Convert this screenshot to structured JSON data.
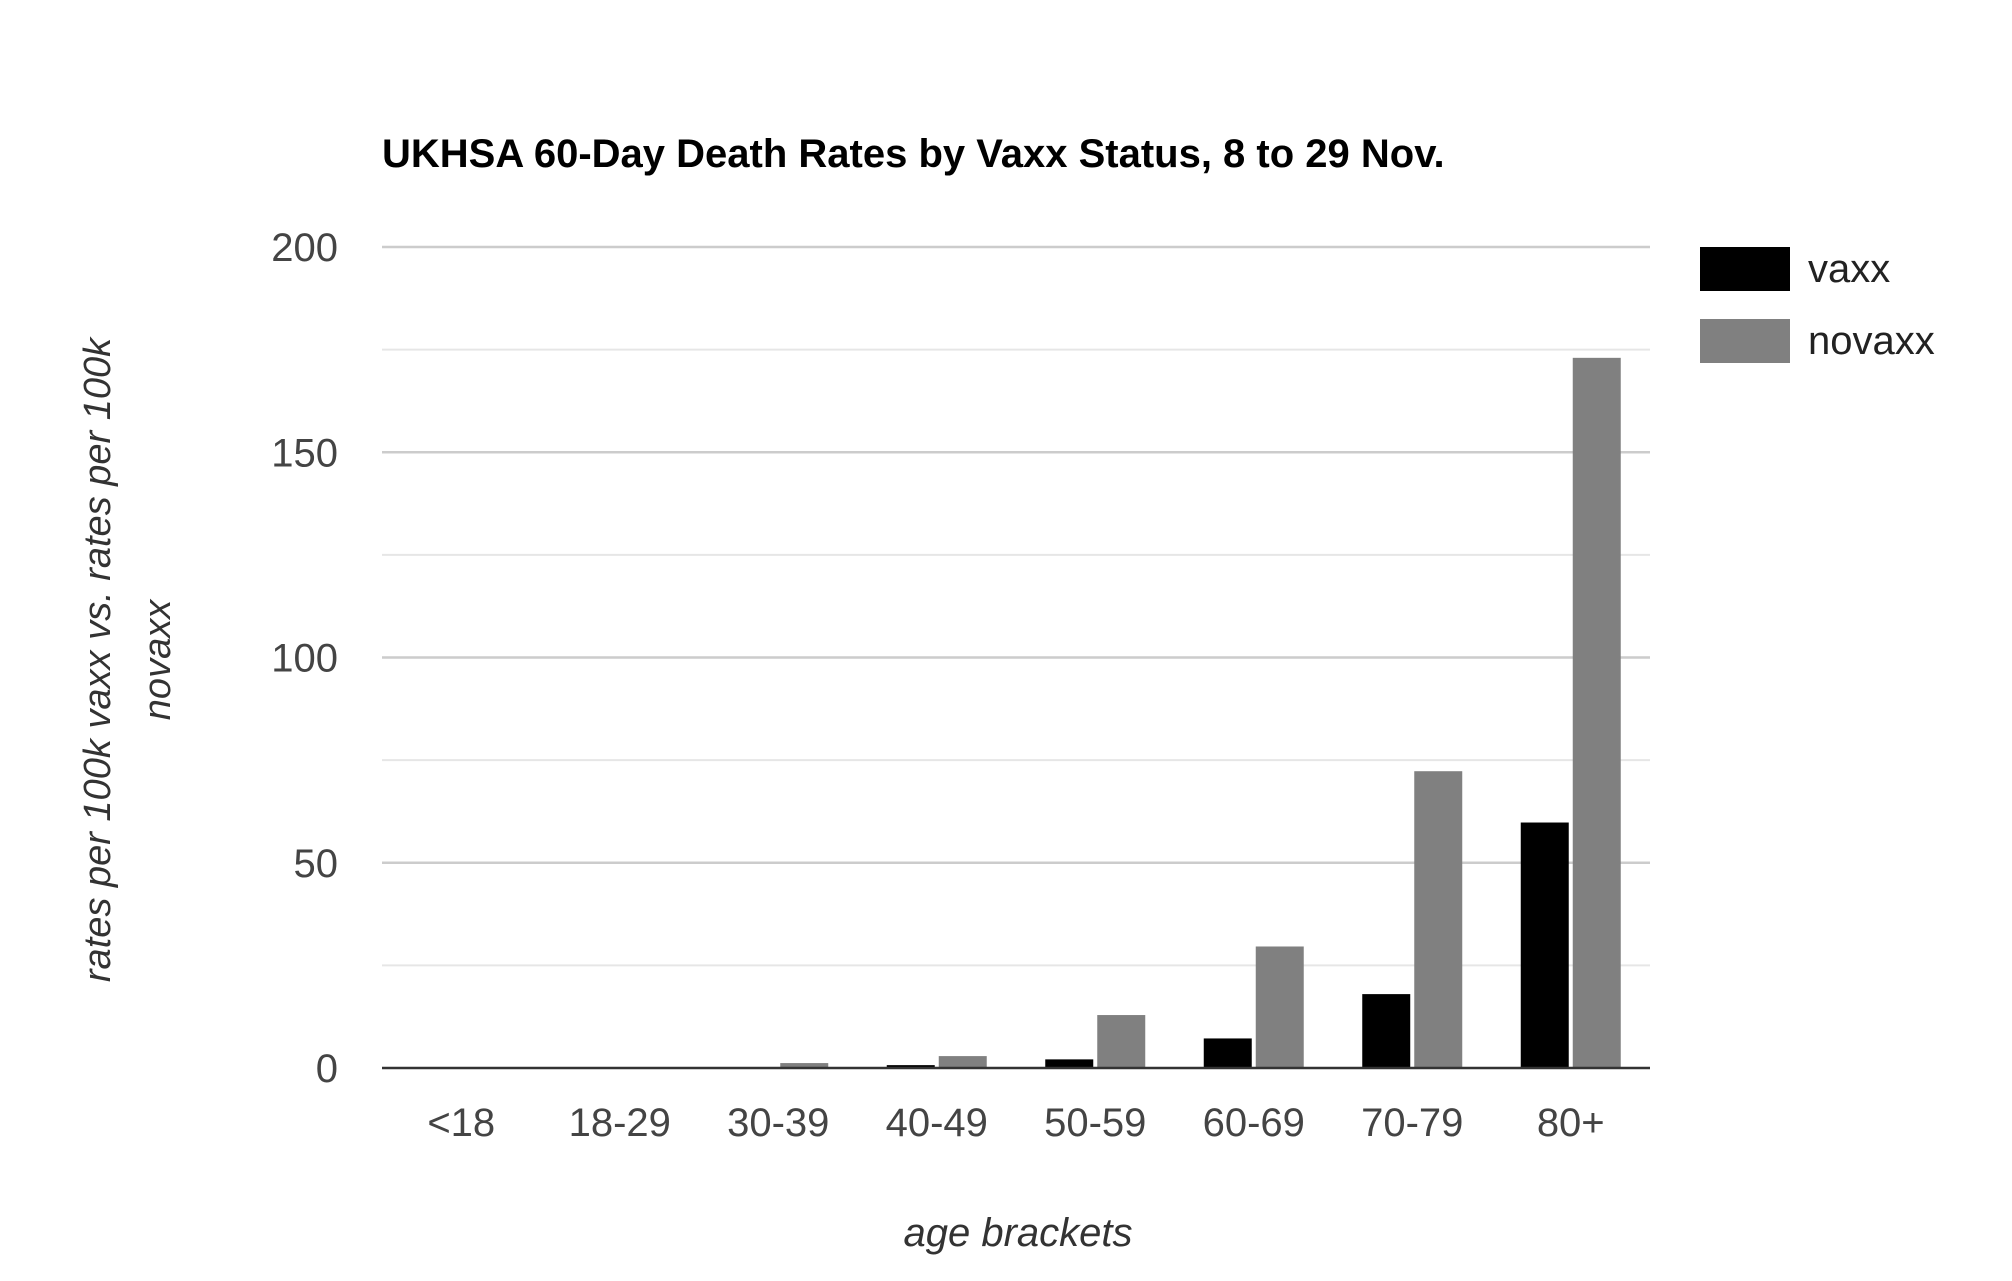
{
  "chart_data": {
    "type": "bar",
    "title": "UKHSA 60-Day Death Rates by Vaxx Status, 8 to 29 Nov.",
    "xlabel": "age brackets",
    "ylabel_lines": [
      "rates per 100k vaxx vs. rates per 100k",
      "novaxx"
    ],
    "categories": [
      "<18",
      "18-29",
      "30-39",
      "40-49",
      "50-59",
      "60-69",
      "70-79",
      "80+"
    ],
    "series": [
      {
        "name": "vaxx",
        "color": "#000000",
        "values": [
          0,
          0,
          0,
          0.7,
          2.1,
          7.2,
          18.0,
          59.8
        ]
      },
      {
        "name": "novaxx",
        "color": "#808080",
        "values": [
          0,
          0,
          1.2,
          2.9,
          12.9,
          29.6,
          72.3,
          173.0
        ]
      }
    ],
    "ylim": [
      0,
      200
    ],
    "yticks": [
      "0",
      "50",
      "100",
      "150",
      "200"
    ],
    "ytick_values": [
      0,
      50,
      100,
      150,
      200
    ],
    "minor_gridlines": [
      25,
      75,
      125,
      175
    ],
    "grid": true,
    "legend_position": "right",
    "colors": {
      "gridline": "#cccccc",
      "minor_gridline": "#e6e6e6",
      "axis": "#333333",
      "tick_text": "#444444",
      "title_text": "#000000"
    }
  }
}
